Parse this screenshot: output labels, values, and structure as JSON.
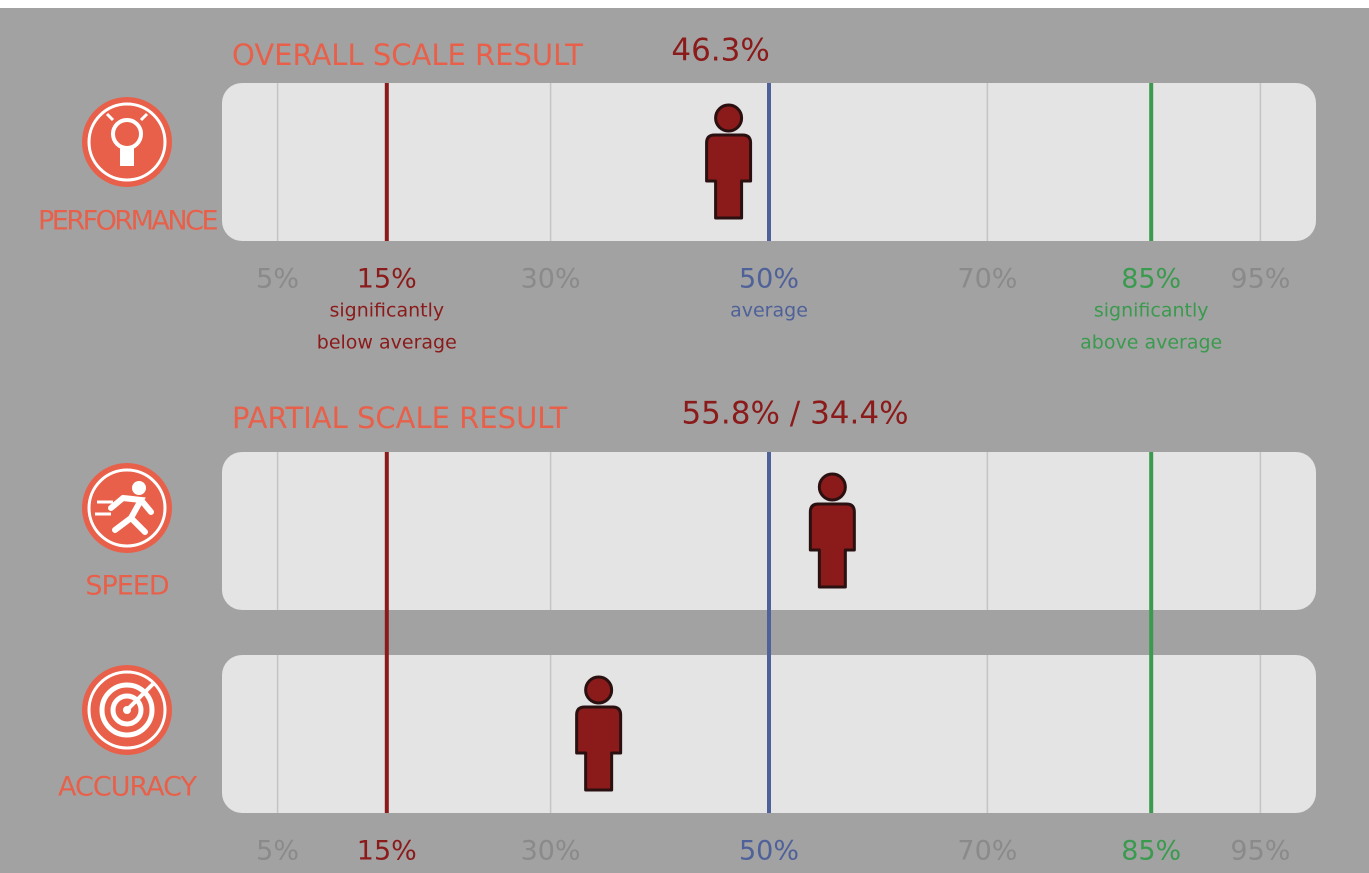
{
  "xlim": [
    0,
    100
  ],
  "ticks": [
    {
      "value": 5,
      "label": "5%",
      "color": "#8a8a8a"
    },
    {
      "value": 15,
      "label": "15%",
      "color": "#8b1a1a",
      "note": [
        "significantly",
        "below average"
      ]
    },
    {
      "value": 30,
      "label": "30%",
      "color": "#8a8a8a"
    },
    {
      "value": 50,
      "label": "50%",
      "color": "#4f6199",
      "note": [
        "average"
      ]
    },
    {
      "value": 70,
      "label": "70%",
      "color": "#8a8a8a"
    },
    {
      "value": 85,
      "label": "85%",
      "color": "#3a9a4e",
      "note": [
        "significantly",
        "above average"
      ]
    },
    {
      "value": 95,
      "label": "95%",
      "color": "#8a8a8a"
    }
  ],
  "sections": [
    {
      "title": "OVERALL SCALE RESULT",
      "result_label": "46.3%",
      "rows": [
        {
          "label": "PERFORMANCE",
          "value": 46.3
        }
      ]
    },
    {
      "title": "PARTIAL SCALE RESULT",
      "result_label": "55.8% / 34.4%",
      "rows": [
        {
          "label": "SPEED",
          "value": 55.8
        },
        {
          "label": "ACCURACY",
          "value": 34.4
        }
      ]
    }
  ]
}
